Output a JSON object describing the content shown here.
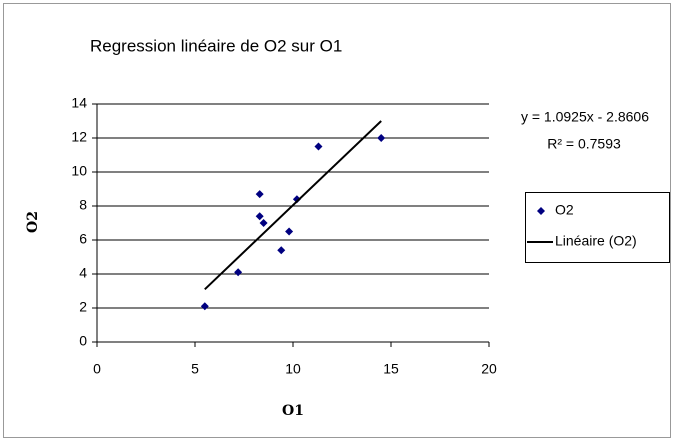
{
  "chart_data": {
    "type": "scatter",
    "title": "Regression linéaire de O2 sur O1",
    "xlabel": "O1",
    "ylabel": "O2",
    "series": [
      {
        "name": "O2",
        "color": "#000080",
        "style": "marker",
        "x": [
          5.5,
          7.2,
          8.3,
          8.3,
          8.5,
          9.4,
          9.8,
          10.2,
          11.3,
          14.5
        ],
        "values": [
          2.1,
          4.1,
          8.7,
          7.4,
          7.0,
          5.4,
          6.5,
          8.4,
          11.5,
          12.0
        ]
      },
      {
        "name": "Linéaire (O2)",
        "color": "#000000",
        "style": "line",
        "x": [
          5.5,
          14.5
        ],
        "values": [
          3.1,
          13.0
        ]
      }
    ],
    "annotations": [
      "y = 1.0925x - 2.8606",
      "R² = 0.7593"
    ],
    "xlim": [
      0,
      20
    ],
    "xticks": [
      0,
      5,
      10,
      15,
      20
    ],
    "ylim": [
      0,
      14
    ],
    "yticks": [
      0,
      2,
      4,
      6,
      8,
      10,
      12,
      14
    ],
    "grid": true,
    "legend": "right"
  }
}
